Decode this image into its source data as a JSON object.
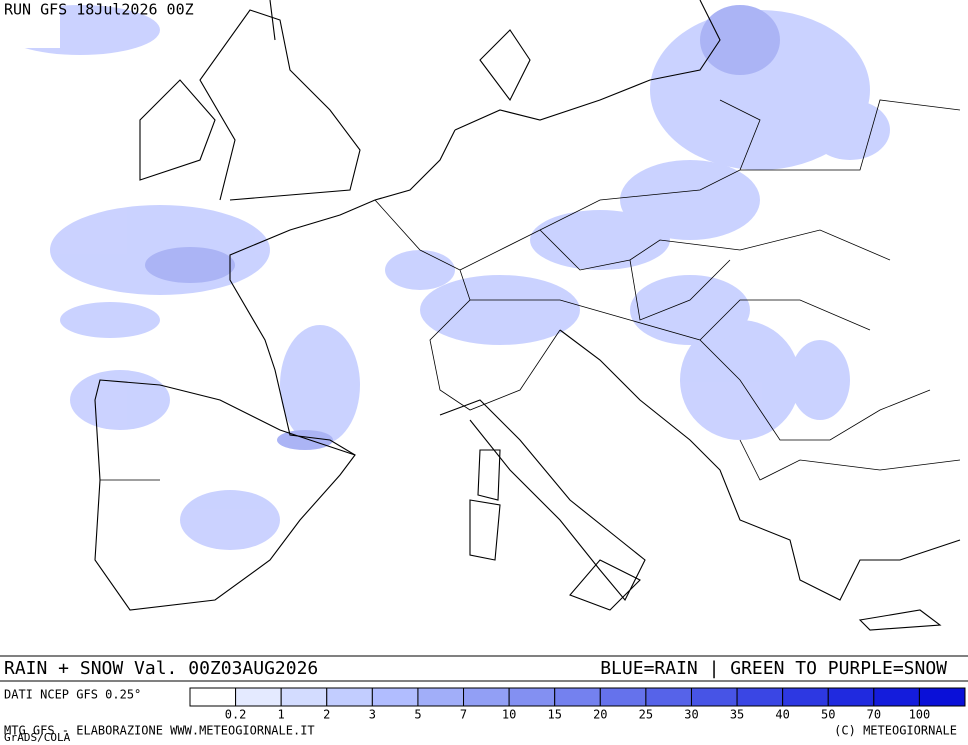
{
  "header": {
    "run": "RUN GFS 18Jul2026 00Z"
  },
  "footer": {
    "title": "RAIN + SNOW Val. 00Z03AUG2026",
    "key": "BLUE=RAIN | GREEN TO PURPLE=SNOW",
    "source": "DATI NCEP GFS 0.25°",
    "credit": "MTG GFS - ELABORAZIONE WWW.METEOGIORNALE.IT",
    "copyright": "(C) METEOGIORNALE",
    "software": "GrADS/COLA"
  },
  "legend": {
    "labels": [
      "0.2",
      "1",
      "2",
      "3",
      "5",
      "7",
      "10",
      "15",
      "20",
      "25",
      "30",
      "35",
      "40",
      "50",
      "70",
      "100"
    ],
    "colors": [
      "#ffffff",
      "#e4eaff",
      "#d3dcff",
      "#c2cdff",
      "#b1bdff",
      "#a1aef9",
      "#929ff5",
      "#8390f2",
      "#7481ef",
      "#6572ec",
      "#5663e9",
      "#4754e6",
      "#3a46e4",
      "#2d38e2",
      "#202adf",
      "#141cdc",
      "#0a10d8"
    ]
  }
}
